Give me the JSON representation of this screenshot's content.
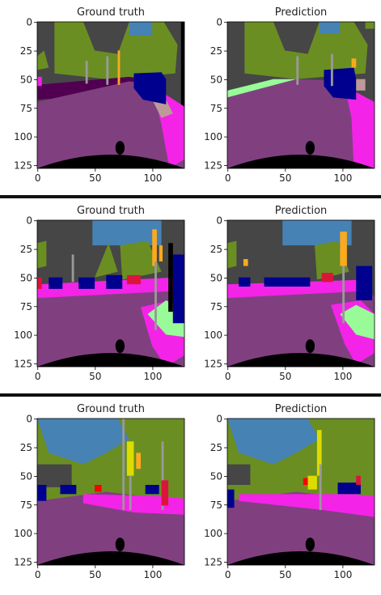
{
  "colors": {
    "road": "#804080",
    "sidewalk": "#f423e8",
    "building": "#464646",
    "vegetation": "#6b8e23",
    "sky": "#4682b4",
    "car": "#00008e",
    "ego": "#000000",
    "terrain": "#98fb98",
    "pole": "#999999",
    "traffic_sign": "#dcdc00",
    "traffic_light": "#faaa1e",
    "person": "#dc143c",
    "rider": "#ff0000",
    "fence": "#be9999",
    "ground": "#510051"
  },
  "chart_data": [
    {
      "type": "heatmap",
      "panels": [
        {
          "title": "Ground truth",
          "scene": "s1gt"
        },
        {
          "title": "Prediction",
          "scene": "s1pr"
        }
      ],
      "xticks": [
        "0",
        "50",
        "100"
      ],
      "yticks": [
        "0",
        "25",
        "50",
        "75",
        "100",
        "125"
      ],
      "xlim": [
        0,
        127
      ],
      "ylim": [
        127,
        0
      ]
    },
    {
      "type": "heatmap",
      "panels": [
        {
          "title": "Ground truth",
          "scene": "s2gt"
        },
        {
          "title": "Prediction",
          "scene": "s2pr"
        }
      ],
      "xticks": [
        "0",
        "50",
        "100"
      ],
      "yticks": [
        "0",
        "25",
        "50",
        "75",
        "100",
        "125"
      ],
      "xlim": [
        0,
        127
      ],
      "ylim": [
        127,
        0
      ]
    },
    {
      "type": "heatmap",
      "panels": [
        {
          "title": "Ground truth",
          "scene": "s3gt"
        },
        {
          "title": "Prediction",
          "scene": "s3pr"
        }
      ],
      "xticks": [
        "0",
        "50",
        "100"
      ],
      "yticks": [
        "0",
        "25",
        "50",
        "75",
        "100",
        "125"
      ],
      "xlim": [
        0,
        127
      ],
      "ylim": [
        127,
        0
      ]
    }
  ]
}
